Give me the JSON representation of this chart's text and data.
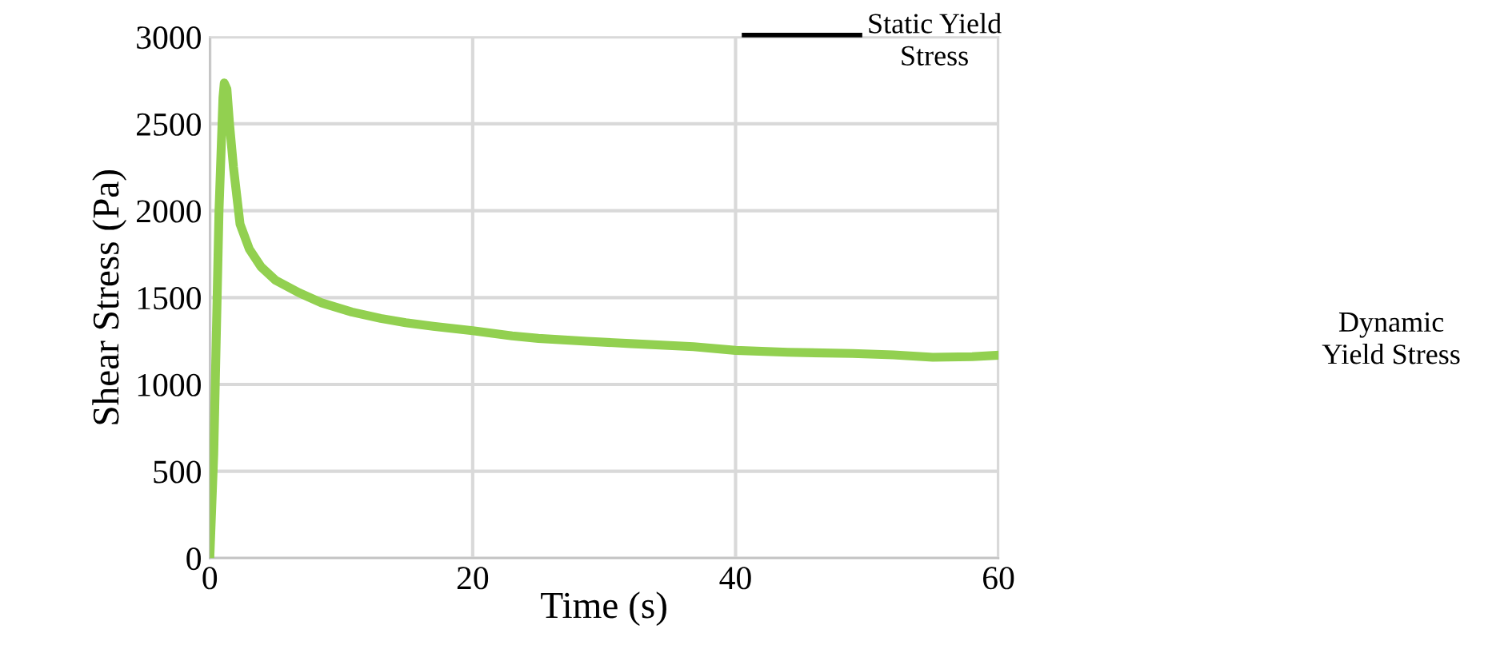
{
  "chart_data": {
    "type": "line",
    "xlabel": "Time (s)",
    "ylabel": "Shear Stress (Pa)",
    "xlim": [
      0,
      60
    ],
    "xticks": [
      0,
      20,
      40,
      60
    ],
    "ylim": [
      0,
      3000
    ],
    "yticks": [
      0,
      500,
      1000,
      1500,
      2000,
      2500,
      3000
    ],
    "grid": true,
    "marker": "none",
    "line_style": "solid",
    "series": [
      {
        "color": "#92d050",
        "x": [
          0,
          0.3,
          0.7,
          1.0,
          1.1,
          1.3,
          1.5,
          1.8,
          2.3,
          3.0,
          3.9,
          5.0,
          6.8,
          8.5,
          10.8,
          13,
          14.9,
          17,
          20,
          23,
          25,
          28.7,
          32,
          36.8,
          40,
          44,
          48.9,
          52,
          55,
          58,
          60
        ],
        "values": [
          0,
          600,
          2000,
          2650,
          2735,
          2700,
          2500,
          2250,
          1923,
          1780,
          1677,
          1600,
          1527,
          1470,
          1417,
          1380,
          1355,
          1335,
          1309,
          1279,
          1265,
          1248,
          1235,
          1217,
          1196,
          1185,
          1178,
          1170,
          1156,
          1160,
          1168
        ]
      }
    ],
    "annotations": [
      "Static Yield\nStress",
      "Dynamic\nYield Stress"
    ]
  }
}
